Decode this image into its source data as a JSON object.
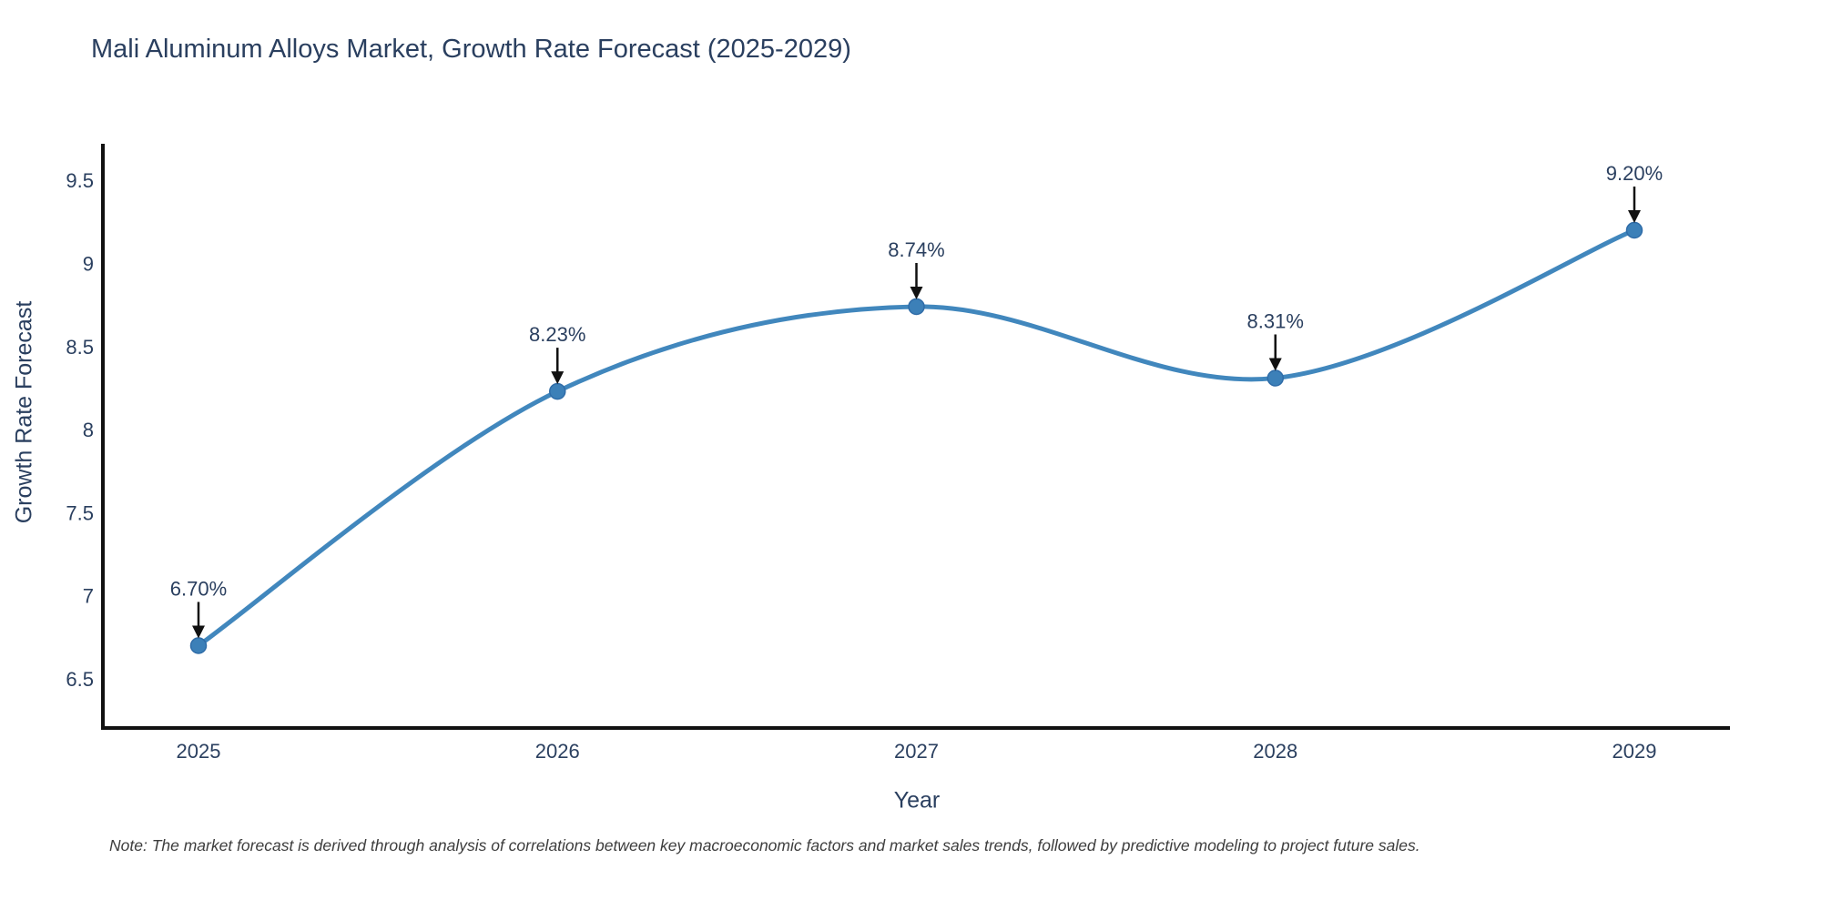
{
  "chart": {
    "title": "Mali Aluminum Alloys Market, Growth Rate Forecast (2025-2029)",
    "ylabel": "Growth Rate Forecast",
    "xlabel": "Year",
    "note": "Note: The market forecast is derived through analysis of correlations between key macroeconomic factors and market sales trends, followed by predictive modeling to project future sales."
  },
  "chart_data": {
    "type": "line",
    "title": "Mali Aluminum Alloys Market, Growth Rate Forecast (2025-2029)",
    "xlabel": "Year",
    "ylabel": "Growth Rate Forecast",
    "x": [
      2025,
      2026,
      2027,
      2028,
      2029
    ],
    "series": [
      {
        "name": "Growth Rate Forecast",
        "values": [
          6.7,
          8.23,
          8.74,
          8.31,
          9.2
        ]
      }
    ],
    "point_labels": [
      "6.70%",
      "8.23%",
      "8.74%",
      "8.31%",
      "9.20%"
    ],
    "y_ticks": [
      6.5,
      7,
      7.5,
      8,
      8.5,
      9,
      9.5
    ],
    "ylim": [
      6.2,
      9.72
    ],
    "line_shape": "spline",
    "grid": false,
    "legend_position": "none",
    "annotations": "black down-arrows from labels to markers",
    "colors": {
      "line": "#4187bd",
      "marker": "#3c80b8",
      "marker_edge": "#2f6ca8",
      "axis": "#111111",
      "text": "#2a3f5f",
      "arrow": "#111111",
      "note_text": "#3d3d3d",
      "background": "#ffffff"
    }
  }
}
